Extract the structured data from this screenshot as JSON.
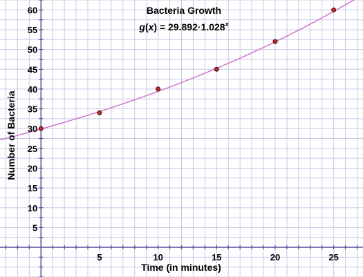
{
  "chart_data": {
    "type": "scatter",
    "title": "Bacteria Growth",
    "subtitle_fn": "g",
    "subtitle_var": "x",
    "subtitle_eq": " = 29.892·1.028",
    "subtitle_exp": "x",
    "xlabel": "Time (in minutes)",
    "ylabel": "Number of Bacteria",
    "xlim": [
      -3.5,
      27.5
    ],
    "ylim": [
      -7.5,
      62.5
    ],
    "xticks": [
      5,
      10,
      15,
      20,
      25
    ],
    "yticks": [
      5,
      10,
      15,
      20,
      25,
      30,
      35,
      40,
      45,
      50,
      55,
      60
    ],
    "grid": true,
    "points": {
      "name": "",
      "x": [
        0,
        5,
        10,
        15,
        20,
        25
      ],
      "y": [
        30,
        34,
        40,
        45,
        52,
        60
      ]
    },
    "curve": {
      "a": 29.892,
      "b": 1.028
    },
    "colors": {
      "grid": "#c9c9e6",
      "axis": "#4b4b99",
      "curve": "#cc77cc",
      "point_fill": "#c0272d",
      "point_stroke": "#4a0d0d"
    }
  }
}
